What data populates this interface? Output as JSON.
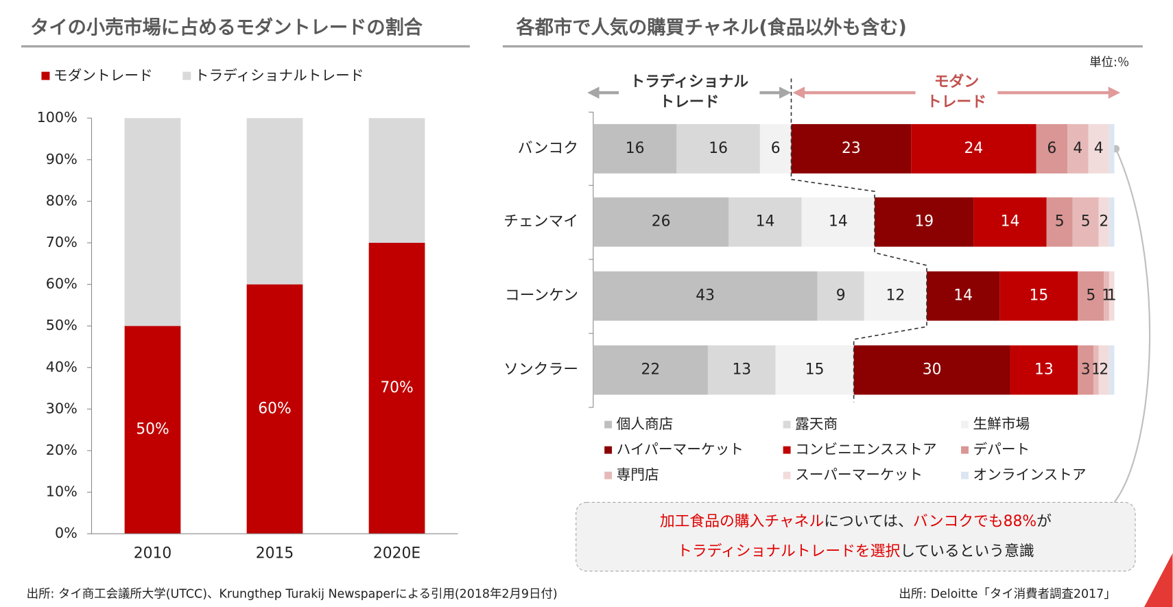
{
  "chart_data": [
    {
      "type": "stacked_bar",
      "title": "タイの小売市場に占めるモダントレードの割合",
      "categories": [
        "2010",
        "2015",
        "2020E"
      ],
      "series": [
        {
          "name": "モダントレード",
          "color": "#c00000",
          "label_color": "#ffffff",
          "values": [
            50,
            60,
            70
          ],
          "value_labels": [
            "50%",
            "60%",
            "70%"
          ]
        },
        {
          "name": "トラディショナルトレード",
          "color": "#d9d9d9",
          "values": [
            50,
            40,
            30
          ]
        }
      ],
      "ylim": [
        0,
        100
      ],
      "yticks": [
        {
          "value": 0,
          "label": "0%"
        },
        {
          "value": 10,
          "label": "10%"
        },
        {
          "value": 20,
          "label": "20%"
        },
        {
          "value": 30,
          "label": "30%"
        },
        {
          "value": 40,
          "label": "40%"
        },
        {
          "value": 50,
          "label": "50%"
        },
        {
          "value": 60,
          "label": "60%"
        },
        {
          "value": 70,
          "label": "70%"
        },
        {
          "value": 80,
          "label": "80%"
        },
        {
          "value": 90,
          "label": "90%"
        },
        {
          "value": 100,
          "label": "100%"
        }
      ],
      "legend": "top",
      "source": "出所: タイ商工会議所大学(UTCC)、Krungthep Turakij Newspaperによる引用(2018年2月9日付)"
    },
    {
      "type": "stacked_barh",
      "title": "各都市で人気の購買チャネル(食品以外も含む)",
      "unit": "単位:％",
      "categories": [
        "バンコク",
        "チェンマイ",
        "コーンケン",
        "ソンクラー"
      ],
      "series": [
        {
          "name": "個人商店",
          "color": "#bfbfbf",
          "label_color": "#222222",
          "values": [
            16,
            26,
            43,
            22
          ]
        },
        {
          "name": "露天商",
          "color": "#d9d9d9",
          "label_color": "#222222",
          "values": [
            16,
            14,
            9,
            13
          ]
        },
        {
          "name": "生鮮市場",
          "color": "#f2f2f2",
          "label_color": "#222222",
          "values": [
            6,
            14,
            12,
            15
          ]
        },
        {
          "name": "ハイパーマーケット",
          "color": "#8b0000",
          "label_color": "#ffffff",
          "values": [
            23,
            19,
            14,
            30
          ]
        },
        {
          "name": "コンビニエンスストア",
          "color": "#c00000",
          "label_color": "#ffffff",
          "values": [
            24,
            14,
            15,
            13
          ]
        },
        {
          "name": "デパート",
          "color": "#d99694",
          "label_color": "#222222",
          "values": [
            6,
            5,
            5,
            3
          ]
        },
        {
          "name": "専門店",
          "color": "#e6b9b8",
          "label_color": "#222222",
          "values": [
            4,
            5,
            1,
            1
          ]
        },
        {
          "name": "スーパーマーケット",
          "color": "#f2dcdb",
          "label_color": "#222222",
          "values": [
            4,
            2,
            1,
            2
          ]
        },
        {
          "name": "オンラインストア",
          "color": "#dce6f2",
          "data_labels": false,
          "values": [
            1,
            1,
            0,
            1
          ]
        }
      ],
      "xlim": [
        0,
        100
      ],
      "traditional_count": 3,
      "group_labels": [
        {
          "text": [
            "トラディショナル",
            "トレード"
          ],
          "color": "#333333",
          "arrow": "#a6a6a6"
        },
        {
          "text": [
            "モダン",
            "トレード"
          ],
          "color": "#c0504d",
          "arrow": "#e09a9a"
        }
      ],
      "callout": [
        [
          {
            "text": "加工食品の購入チャネル",
            "color": "#e00000"
          },
          {
            "text": "については、",
            "color": "#222222"
          },
          {
            "text": "バンコクでも88%",
            "color": "#e00000"
          },
          {
            "text": "が",
            "color": "#222222"
          }
        ],
        [
          {
            "text": "トラディショナルトレードを選択",
            "color": "#e00000"
          },
          {
            "text": "しているという意識",
            "color": "#222222"
          }
        ]
      ],
      "source": "出所: Deloitte「タイ消費者調査2017」"
    }
  ]
}
